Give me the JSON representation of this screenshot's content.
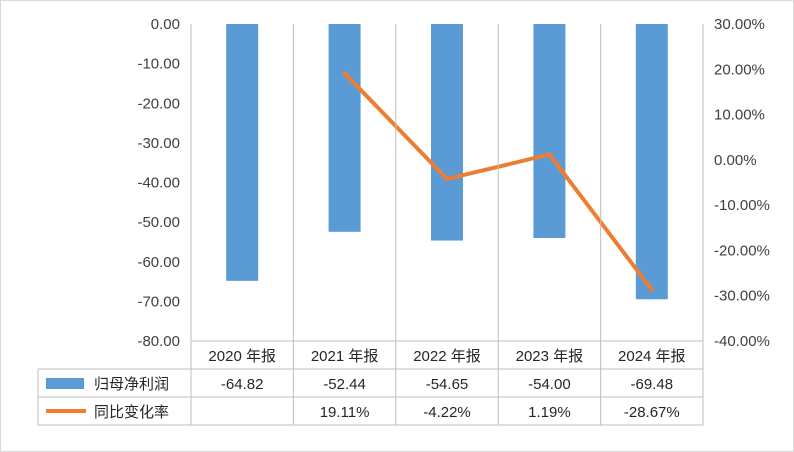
{
  "chart_data": {
    "type": "bar",
    "categories": [
      "2020 年报",
      "2021 年报",
      "2022 年报",
      "2023 年报",
      "2024 年报"
    ],
    "series": [
      {
        "name": "归母净利润",
        "type": "bar",
        "axis": "left",
        "color": "#5b9bd5",
        "values": [
          -64.82,
          -52.44,
          -54.65,
          -54.0,
          -69.48
        ],
        "labels": [
          "-64.82",
          "-52.44",
          "-54.65",
          "-54.00",
          "-69.48"
        ]
      },
      {
        "name": "同比变化率",
        "type": "line",
        "axis": "right",
        "unit": "%",
        "color": "#ed7d31",
        "values": [
          null,
          19.11,
          -4.22,
          1.19,
          -28.67
        ],
        "labels": [
          "",
          "19.11%",
          "-4.22%",
          "1.19%",
          "-28.67%"
        ]
      }
    ],
    "left_axis": {
      "ylim": [
        -80,
        0
      ],
      "ticks": [
        0,
        -10,
        -20,
        -30,
        -40,
        -50,
        -60,
        -70,
        -80
      ],
      "tick_labels": [
        "0.00",
        "-10.00",
        "-20.00",
        "-30.00",
        "-40.00",
        "-50.00",
        "-60.00",
        "-70.00",
        "-80.00"
      ]
    },
    "right_axis": {
      "ylim": [
        -40,
        30
      ],
      "ticks": [
        30,
        20,
        10,
        0,
        -10,
        -20,
        -30,
        -40
      ],
      "tick_labels": [
        "30.00%",
        "20.00%",
        "10.00%",
        "0.00%",
        "-10.00%",
        "-20.00%",
        "-30.00%",
        "-40.00%"
      ]
    },
    "grid": false,
    "data_table": true
  }
}
